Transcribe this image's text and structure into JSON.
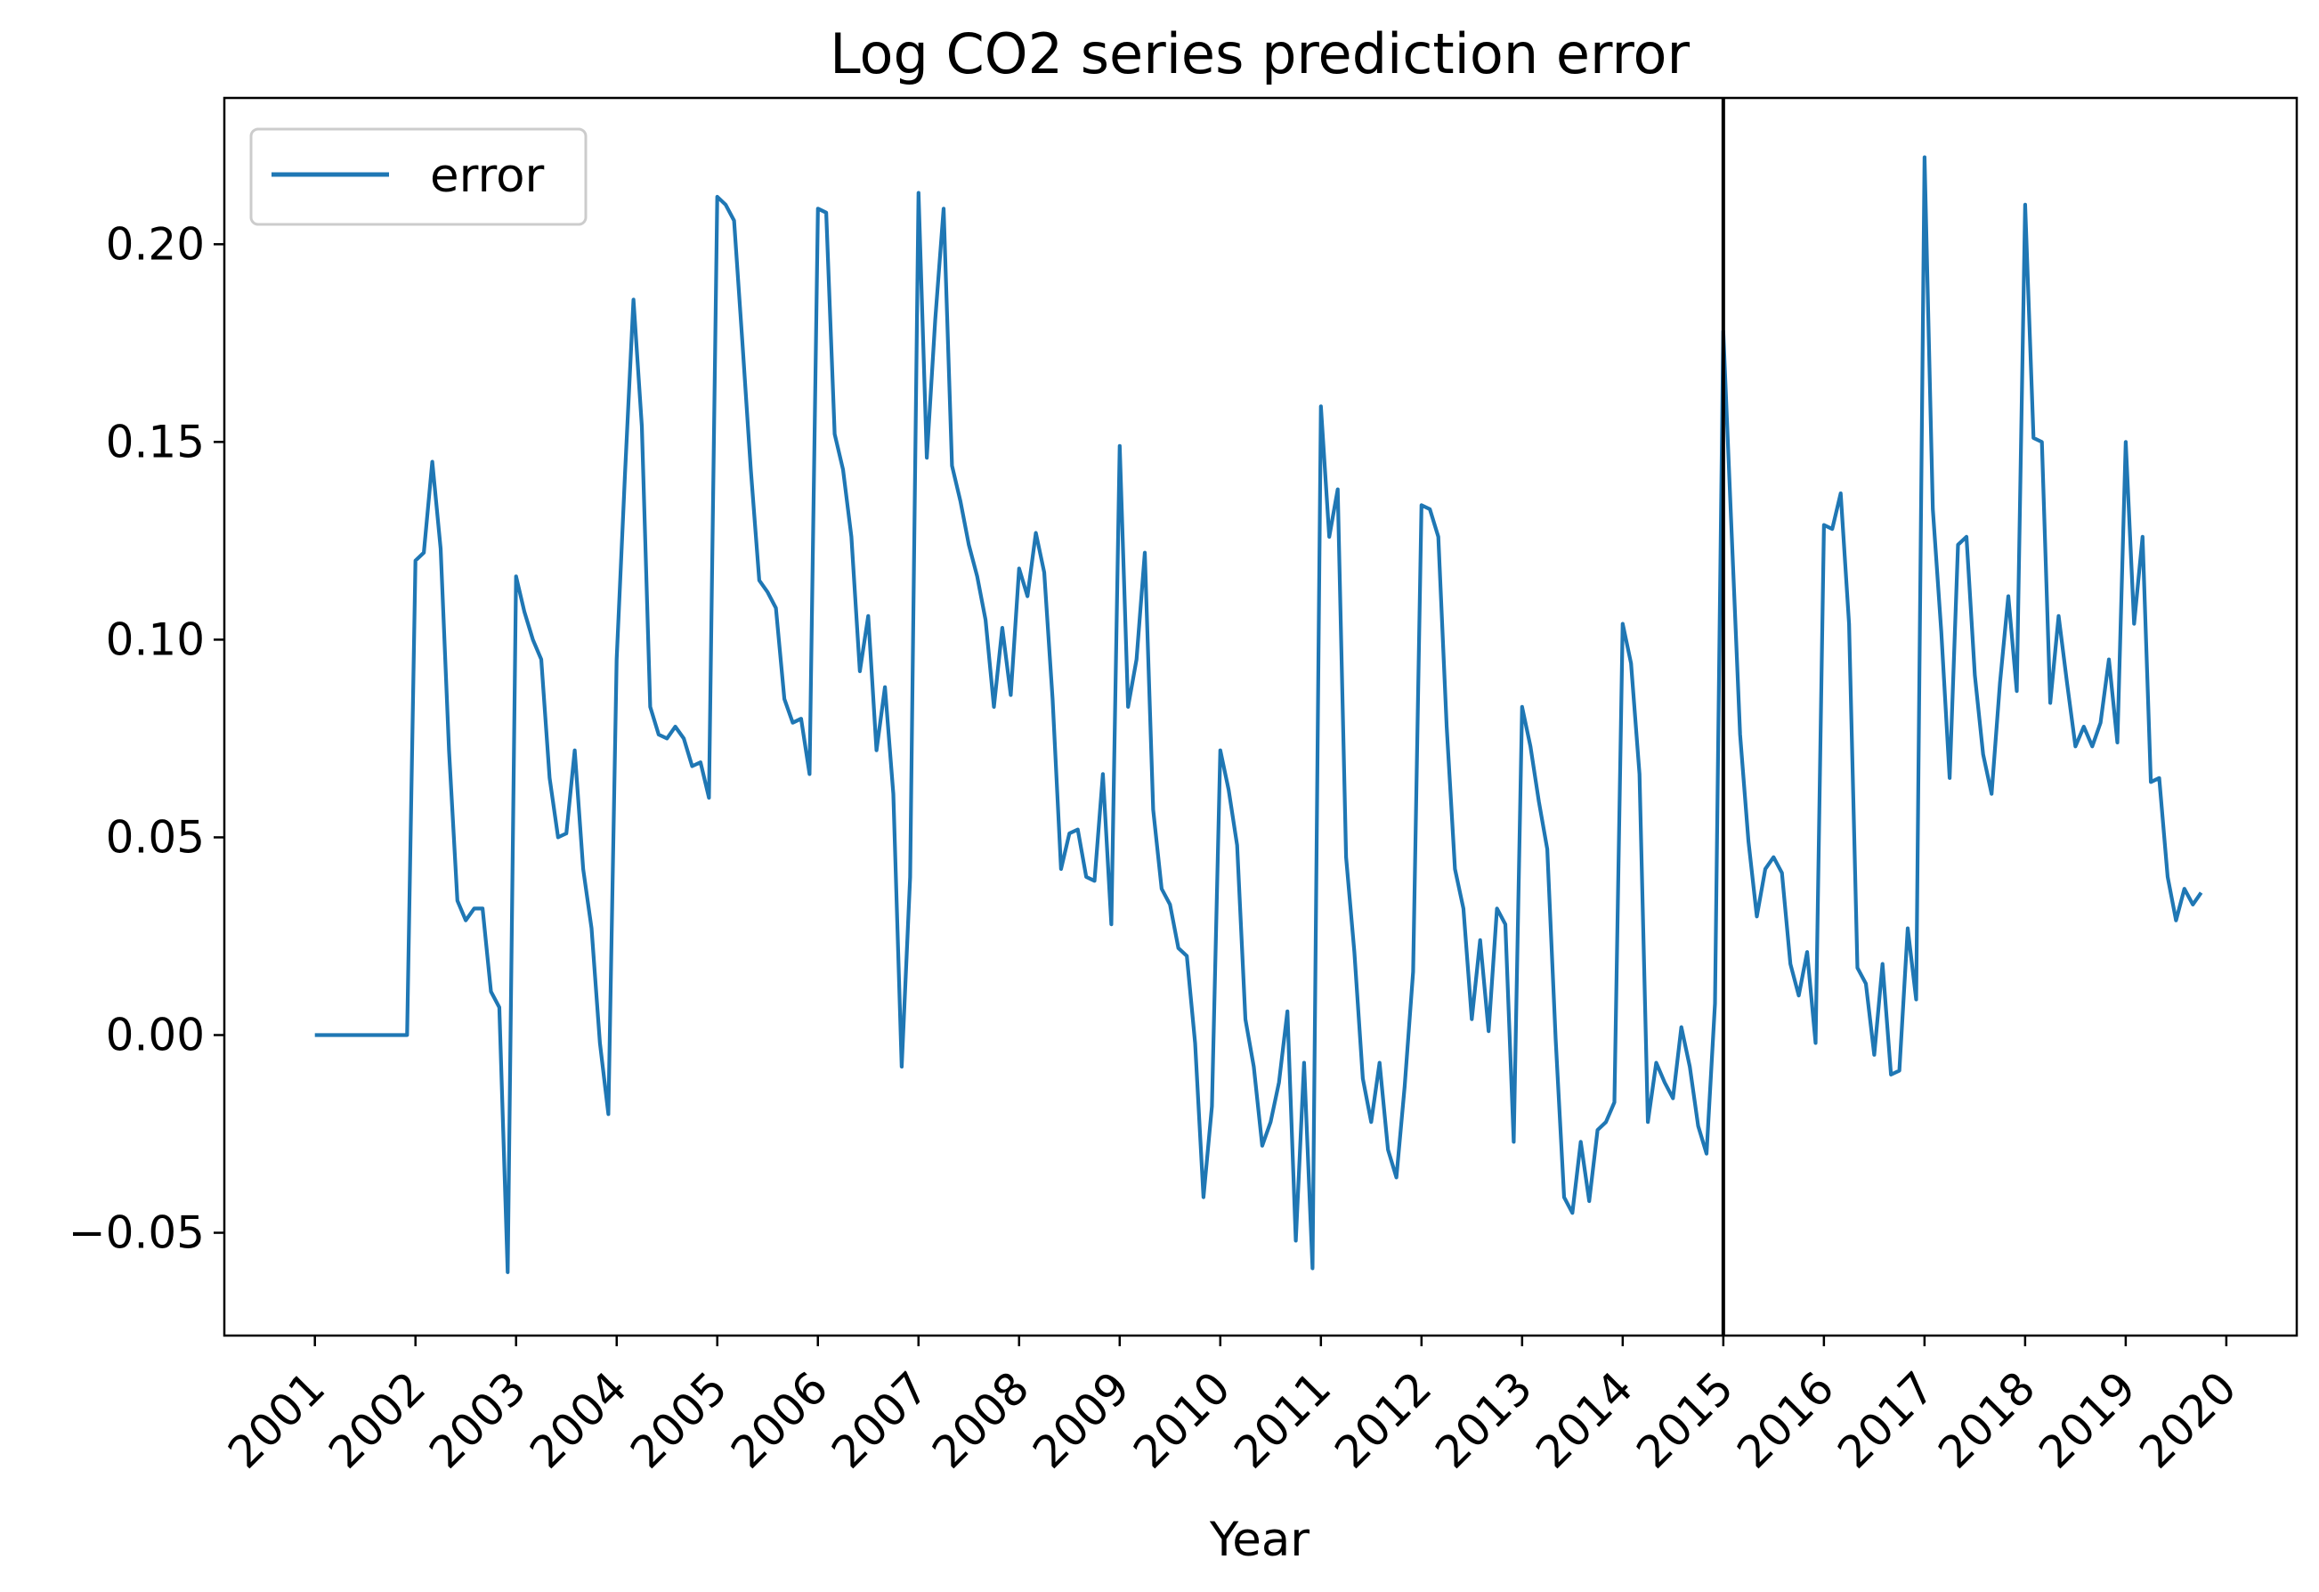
{
  "chart_data": {
    "type": "line",
    "title": "Log CO2 series prediction error",
    "xlabel": "Year",
    "ylabel": "",
    "xlim": [
      2000.1,
      2020.7
    ],
    "ylim": [
      -0.076,
      0.237
    ],
    "xticks": [
      "2001",
      "2002",
      "2003",
      "2004",
      "2005",
      "2006",
      "2007",
      "2008",
      "2009",
      "2010",
      "2011",
      "2012",
      "2013",
      "2014",
      "2015",
      "2016",
      "2017",
      "2018",
      "2019",
      "2020"
    ],
    "yticks": [
      "0.20",
      "0.15",
      "0.10",
      "0.05",
      "0.00",
      "−0.05"
    ],
    "ytick_values": [
      0.2,
      0.15,
      0.1,
      0.05,
      0.0,
      -0.05
    ],
    "vline_x": 2015.0,
    "grid": false,
    "legend_position": "upper left",
    "series": [
      {
        "name": "error",
        "color": "#1f77b4",
        "x": [
          2001.0,
          2001.083,
          2001.167,
          2001.25,
          2001.333,
          2001.417,
          2001.5,
          2001.583,
          2001.667,
          2001.75,
          2001.833,
          2001.917,
          2002.0,
          2002.083,
          2002.167,
          2002.25,
          2002.333,
          2002.417,
          2002.5,
          2002.583,
          2002.667,
          2002.75,
          2002.833,
          2002.917,
          2003.0,
          2003.083,
          2003.167,
          2003.25,
          2003.333,
          2003.417,
          2003.5,
          2003.583,
          2003.667,
          2003.75,
          2003.833,
          2003.917,
          2004.0,
          2004.083,
          2004.167,
          2004.25,
          2004.333,
          2004.417,
          2004.5,
          2004.583,
          2004.667,
          2004.75,
          2004.833,
          2004.917,
          2005.0,
          2005.083,
          2005.167,
          2005.25,
          2005.333,
          2005.417,
          2005.5,
          2005.583,
          2005.667,
          2005.75,
          2005.833,
          2005.917,
          2006.0,
          2006.083,
          2006.167,
          2006.25,
          2006.333,
          2006.417,
          2006.5,
          2006.583,
          2006.667,
          2006.75,
          2006.833,
          2006.917,
          2007.0,
          2007.083,
          2007.167,
          2007.25,
          2007.333,
          2007.417,
          2007.5,
          2007.583,
          2007.667,
          2007.75,
          2007.833,
          2007.917,
          2008.0,
          2008.083,
          2008.167,
          2008.25,
          2008.333,
          2008.417,
          2008.5,
          2008.583,
          2008.667,
          2008.75,
          2008.833,
          2008.917,
          2009.0,
          2009.083,
          2009.167,
          2009.25,
          2009.333,
          2009.417,
          2009.5,
          2009.583,
          2009.667,
          2009.75,
          2009.833,
          2009.917,
          2010.0,
          2010.083,
          2010.167,
          2010.25,
          2010.333,
          2010.417,
          2010.5,
          2010.583,
          2010.667,
          2010.75,
          2010.833,
          2010.917,
          2011.0,
          2011.083,
          2011.167,
          2011.25,
          2011.333,
          2011.417,
          2011.5,
          2011.583,
          2011.667,
          2011.75,
          2011.833,
          2011.917,
          2012.0,
          2012.083,
          2012.167,
          2012.25,
          2012.333,
          2012.417,
          2012.5,
          2012.583,
          2012.667,
          2012.75,
          2012.833,
          2012.917,
          2013.0,
          2013.083,
          2013.167,
          2013.25,
          2013.333,
          2013.417,
          2013.5,
          2013.583,
          2013.667,
          2013.75,
          2013.833,
          2013.917,
          2014.0,
          2014.083,
          2014.167,
          2014.25,
          2014.333,
          2014.417,
          2014.5,
          2014.583,
          2014.667,
          2014.75,
          2014.833,
          2014.917,
          2015.0,
          2015.083,
          2015.167,
          2015.25,
          2015.333,
          2015.417,
          2015.5,
          2015.583,
          2015.667,
          2015.75,
          2015.833,
          2015.917,
          2016.0,
          2016.083,
          2016.167,
          2016.25,
          2016.333,
          2016.417,
          2016.5,
          2016.583,
          2016.667,
          2016.75,
          2016.833,
          2016.917,
          2017.0,
          2017.083,
          2017.167,
          2017.25,
          2017.333,
          2017.417,
          2017.5,
          2017.583,
          2017.667,
          2017.75,
          2017.833,
          2017.917,
          2018.0,
          2018.083,
          2018.167,
          2018.25,
          2018.333,
          2018.417,
          2018.5,
          2018.583,
          2018.667,
          2018.75,
          2018.833,
          2018.917,
          2019.0,
          2019.083,
          2019.167,
          2019.25,
          2019.333,
          2019.417,
          2019.5,
          2019.583,
          2019.667,
          2019.75
        ],
        "y": [
          0.0,
          0.0,
          0.0,
          0.0,
          0.0,
          0.0,
          0.0,
          0.0,
          0.0,
          0.0,
          0.0,
          0.0,
          0.12,
          0.122,
          0.145,
          0.123,
          0.072,
          0.034,
          0.029,
          0.032,
          0.032,
          0.011,
          0.007,
          -0.06,
          0.116,
          0.107,
          0.1,
          0.095,
          0.065,
          0.05,
          0.051,
          0.072,
          0.042,
          0.027,
          -0.002,
          -0.02,
          0.095,
          0.142,
          0.186,
          0.154,
          0.083,
          0.076,
          0.075,
          0.078,
          0.075,
          0.068,
          0.069,
          0.06,
          0.212,
          0.21,
          0.206,
          0.175,
          0.143,
          0.115,
          0.112,
          0.108,
          0.085,
          0.079,
          0.08,
          0.066,
          0.209,
          0.208,
          0.152,
          0.143,
          0.126,
          0.092,
          0.106,
          0.072,
          0.088,
          0.061,
          -0.008,
          0.04,
          0.213,
          0.146,
          0.181,
          0.209,
          0.144,
          0.135,
          0.124,
          0.116,
          0.105,
          0.083,
          0.103,
          0.086,
          0.118,
          0.111,
          0.127,
          0.117,
          0.085,
          0.042,
          0.051,
          0.052,
          0.04,
          0.039,
          0.066,
          0.028,
          0.149,
          0.083,
          0.095,
          0.122,
          0.057,
          0.037,
          0.033,
          0.022,
          0.02,
          -0.002,
          -0.041,
          -0.018,
          0.072,
          0.062,
          0.048,
          0.004,
          -0.008,
          -0.028,
          -0.022,
          -0.012,
          0.006,
          -0.052,
          -0.007,
          -0.059,
          0.159,
          0.126,
          0.138,
          0.045,
          0.021,
          -0.011,
          -0.022,
          -0.007,
          -0.029,
          -0.036,
          -0.013,
          0.016,
          0.134,
          0.133,
          0.126,
          0.078,
          0.042,
          0.032,
          0.004,
          0.024,
          0.001,
          0.032,
          0.028,
          -0.027,
          0.083,
          0.073,
          0.059,
          0.047,
          -0.001,
          -0.041,
          -0.045,
          -0.027,
          -0.042,
          -0.024,
          -0.022,
          -0.017,
          0.104,
          0.094,
          0.066,
          -0.022,
          -0.007,
          -0.012,
          -0.016,
          0.002,
          -0.008,
          -0.023,
          -0.03,
          0.008,
          0.178,
          0.127,
          0.076,
          0.049,
          0.03,
          0.042,
          0.045,
          0.041,
          0.018,
          0.01,
          0.021,
          -0.002,
          0.129,
          0.128,
          0.137,
          0.104,
          0.017,
          0.013,
          -0.005,
          0.018,
          -0.01,
          -0.009,
          0.027,
          0.009,
          0.222,
          0.133,
          0.102,
          0.065,
          0.124,
          0.126,
          0.091,
          0.071,
          0.061,
          0.089,
          0.111,
          0.087,
          0.21,
          0.151,
          0.15,
          0.084,
          0.106,
          0.089,
          0.073,
          0.078,
          0.073,
          0.079,
          0.095,
          0.074,
          0.15,
          0.104,
          0.126,
          0.064,
          0.065,
          0.04,
          0.029,
          0.037,
          0.033,
          0.036
        ]
      }
    ]
  }
}
